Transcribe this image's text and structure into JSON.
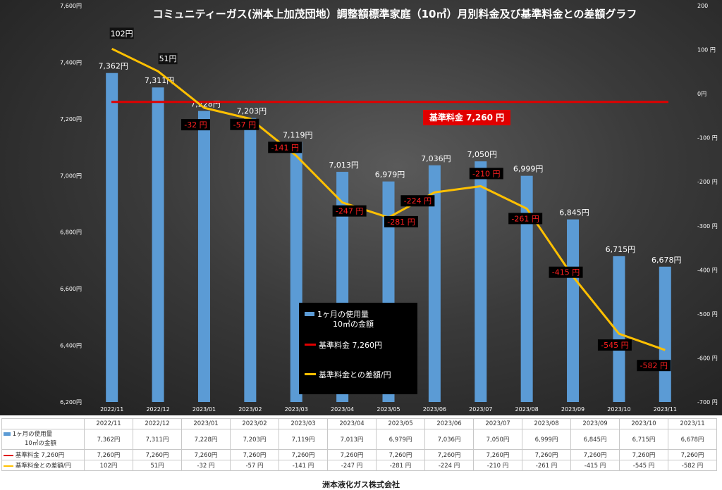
{
  "title": "コミュニティーガス(洲本上加茂団地）調整額標準家庭（10㎥）月別料金及び基準料金との差額グラフ",
  "std_badge": "基準料金  7,260  円",
  "footer": "洲本液化ガス株式会社",
  "colors": {
    "bar": "#5b9bd5",
    "std_line": "#e00000",
    "diff_line": "#ffc000",
    "diff_label_bg": "#000000",
    "diff_label_text": "#ff2020"
  },
  "legend": {
    "bar_label_1": "1ヶ月の使用量",
    "bar_label_2": "10㎥の金額",
    "std_label": "基準料金  7,260円",
    "diff_label": "基準料金との差額/円"
  },
  "chart_data": {
    "type": "bar",
    "categories": [
      "2022/11",
      "2022/12",
      "2023/01",
      "2023/02",
      "2023/03",
      "2023/04",
      "2023/05",
      "2023/06",
      "2023/07",
      "2023/08",
      "2023/09",
      "2023/10",
      "2023/11"
    ],
    "series": [
      {
        "name": "1ヶ月の使用量 10㎥の金額",
        "type": "bar",
        "axis": "left",
        "values": [
          7362,
          7311,
          7228,
          7203,
          7119,
          7013,
          6979,
          7036,
          7050,
          6999,
          6845,
          6715,
          6678
        ],
        "labels": [
          "7,362円",
          "7,311円",
          "7,228円",
          "7,203円",
          "7,119円",
          "7,013円",
          "6,979円",
          "7,036円",
          "7,050円",
          "6,999円",
          "6,845円",
          "6,715円",
          "6,678円"
        ]
      },
      {
        "name": "基準料金 7,260円",
        "type": "line",
        "axis": "left",
        "value": 7260
      },
      {
        "name": "基準料金との差額/円",
        "type": "line",
        "axis": "right",
        "values": [
          102,
          51,
          -32,
          -57,
          -141,
          -247,
          -281,
          -224,
          -210,
          -261,
          -415,
          -545,
          -582
        ],
        "labels": [
          "102円",
          "51円",
          "-32 円",
          "-57 円",
          "-141 円",
          "-247 円",
          "-281 円",
          "-224 円",
          "-210 円",
          "-261 円",
          "-415 円",
          "-545 円",
          "-582 円"
        ]
      }
    ],
    "y_left": {
      "min": 6200,
      "max": 7600,
      "ticks": [
        "6,200円",
        "6,400円",
        "6,600円",
        "6,800円",
        "7,000円",
        "7,200円",
        "7,400円",
        "7,600円"
      ]
    },
    "y_right": {
      "min": -700,
      "max": 200,
      "ticks": [
        "-700 円",
        "-600 円",
        "-500 円",
        "-400 円",
        "-300 円",
        "-200 円",
        "-100 円",
        "0円",
        "100 円",
        "200"
      ]
    }
  },
  "table": {
    "headers": [
      "2022/11",
      "2022/12",
      "2023/01",
      "2023/02",
      "2023/03",
      "2023/04",
      "2023/05",
      "2023/06",
      "2023/07",
      "2023/08",
      "2023/09",
      "2023/10",
      "2023/11"
    ],
    "row_labels": [
      "1ヶ月の使用量",
      "10㎥の金額",
      "基準料金  7,260円",
      "基準料金との差額/円"
    ],
    "row_bars": [
      "7,362円",
      "7,311円",
      "7,228円",
      "7,203円",
      "7,119円",
      "7,013円",
      "6,979円",
      "7,036円",
      "7,050円",
      "6,999円",
      "6,845円",
      "6,715円",
      "6,678円"
    ],
    "row_std": [
      "7,260円",
      "7,260円",
      "7,260円",
      "7,260円",
      "7,260円",
      "7,260円",
      "7,260円",
      "7,260円",
      "7,260円",
      "7,260円",
      "7,260円",
      "7,260円",
      "7,260円"
    ],
    "row_diff": [
      "102円",
      "51円",
      "-32 円",
      "-57 円",
      "-141 円",
      "-247 円",
      "-281 円",
      "-224 円",
      "-210 円",
      "-261 円",
      "-415 円",
      "-545 円",
      "-582 円"
    ]
  }
}
